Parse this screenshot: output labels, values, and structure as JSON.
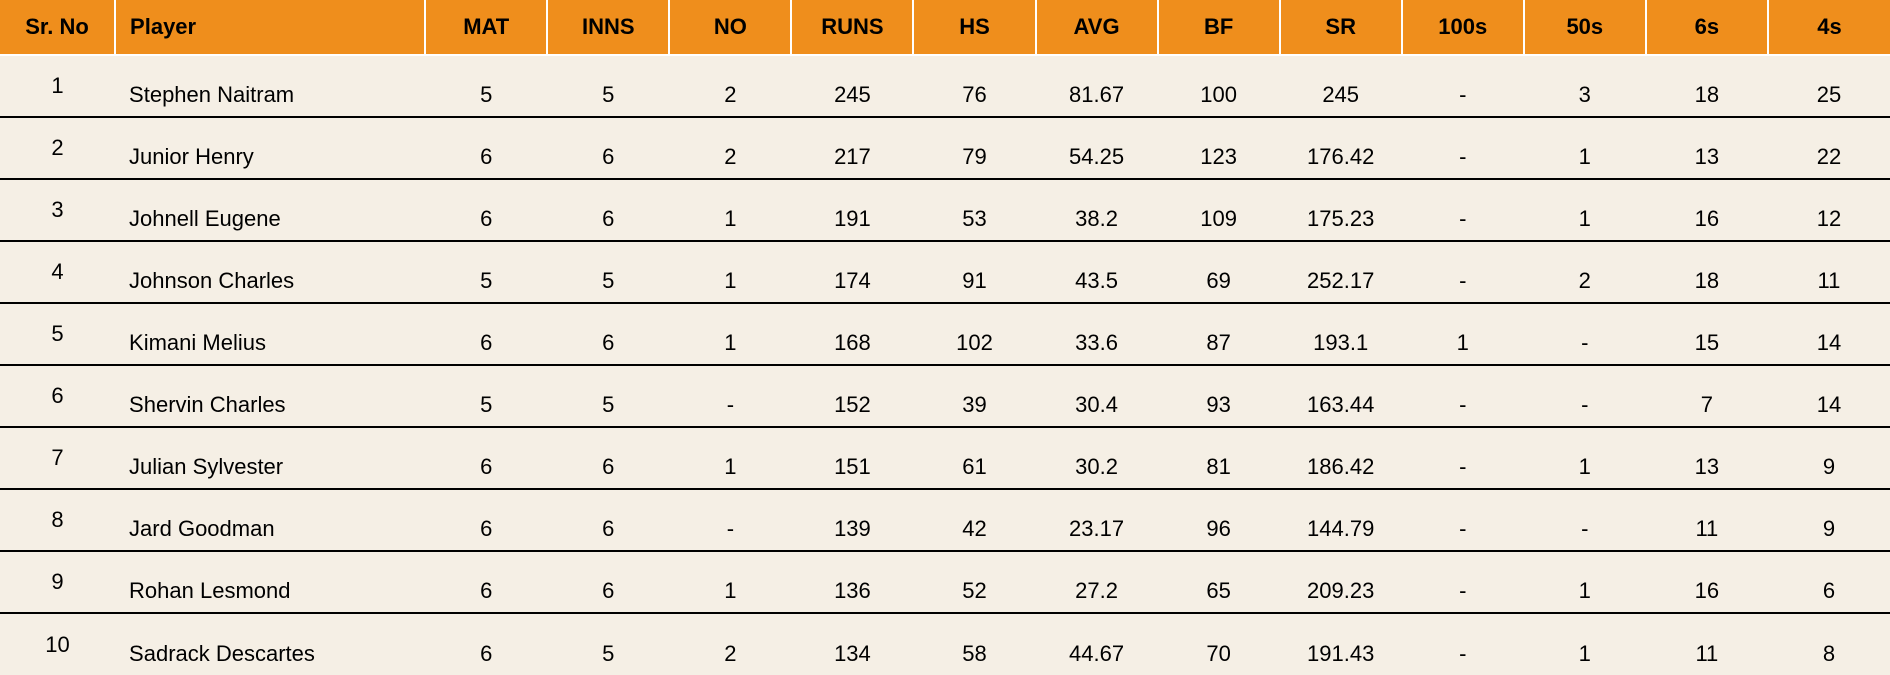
{
  "header_bg": "#ef8e1c",
  "columns": [
    {
      "key": "sr",
      "label": "Sr. No",
      "class": "srno"
    },
    {
      "key": "player",
      "label": "Player",
      "class": "player"
    },
    {
      "key": "mat",
      "label": "MAT"
    },
    {
      "key": "inns",
      "label": "INNS"
    },
    {
      "key": "no",
      "label": "NO"
    },
    {
      "key": "runs",
      "label": "RUNS"
    },
    {
      "key": "hs",
      "label": "HS"
    },
    {
      "key": "avg",
      "label": "AVG"
    },
    {
      "key": "bf",
      "label": "BF"
    },
    {
      "key": "sr_",
      "label": "SR"
    },
    {
      "key": "c100",
      "label": "100s"
    },
    {
      "key": "c50",
      "label": "50s"
    },
    {
      "key": "c6",
      "label": "6s"
    },
    {
      "key": "c4",
      "label": "4s"
    }
  ],
  "rows": [
    {
      "sr": "1",
      "player": "Stephen Naitram",
      "mat": "5",
      "inns": "5",
      "no": "2",
      "runs": "245",
      "hs": "76",
      "avg": "81.67",
      "bf": "100",
      "sr_": "245",
      "c100": "-",
      "c50": "3",
      "c6": "18",
      "c4": "25"
    },
    {
      "sr": "2",
      "player": "Junior Henry",
      "mat": "6",
      "inns": "6",
      "no": "2",
      "runs": "217",
      "hs": "79",
      "avg": "54.25",
      "bf": "123",
      "sr_": "176.42",
      "c100": "-",
      "c50": "1",
      "c6": "13",
      "c4": "22"
    },
    {
      "sr": "3",
      "player": "Johnell Eugene",
      "mat": "6",
      "inns": "6",
      "no": "1",
      "runs": "191",
      "hs": "53",
      "avg": "38.2",
      "bf": "109",
      "sr_": "175.23",
      "c100": "-",
      "c50": "1",
      "c6": "16",
      "c4": "12"
    },
    {
      "sr": "4",
      "player": "Johnson Charles",
      "mat": "5",
      "inns": "5",
      "no": "1",
      "runs": "174",
      "hs": "91",
      "avg": "43.5",
      "bf": "69",
      "sr_": "252.17",
      "c100": "-",
      "c50": "2",
      "c6": "18",
      "c4": "11"
    },
    {
      "sr": "5",
      "player": "Kimani Melius",
      "mat": "6",
      "inns": "6",
      "no": "1",
      "runs": "168",
      "hs": "102",
      "avg": "33.6",
      "bf": "87",
      "sr_": "193.1",
      "c100": "1",
      "c50": "-",
      "c6": "15",
      "c4": "14"
    },
    {
      "sr": "6",
      "player": "Shervin Charles",
      "mat": "5",
      "inns": "5",
      "no": "-",
      "runs": "152",
      "hs": "39",
      "avg": "30.4",
      "bf": "93",
      "sr_": "163.44",
      "c100": "-",
      "c50": "-",
      "c6": "7",
      "c4": "14"
    },
    {
      "sr": "7",
      "player": "Julian Sylvester",
      "mat": "6",
      "inns": "6",
      "no": "1",
      "runs": "151",
      "hs": "61",
      "avg": "30.2",
      "bf": "81",
      "sr_": "186.42",
      "c100": "-",
      "c50": "1",
      "c6": "13",
      "c4": "9"
    },
    {
      "sr": "8",
      "player": "Jard Goodman",
      "mat": "6",
      "inns": "6",
      "no": "-",
      "runs": "139",
      "hs": "42",
      "avg": "23.17",
      "bf": "96",
      "sr_": "144.79",
      "c100": "-",
      "c50": "-",
      "c6": "11",
      "c4": "9"
    },
    {
      "sr": "9",
      "player": "Rohan Lesmond",
      "mat": "6",
      "inns": "6",
      "no": "1",
      "runs": "136",
      "hs": "52",
      "avg": "27.2",
      "bf": "65",
      "sr_": "209.23",
      "c100": "-",
      "c50": "1",
      "c6": "16",
      "c4": "6"
    },
    {
      "sr": "10",
      "player": "Sadrack Descartes",
      "mat": "6",
      "inns": "5",
      "no": "2",
      "runs": "134",
      "hs": "58",
      "avg": "44.67",
      "bf": "70",
      "sr_": "191.43",
      "c100": "-",
      "c50": "1",
      "c6": "11",
      "c4": "8"
    }
  ]
}
